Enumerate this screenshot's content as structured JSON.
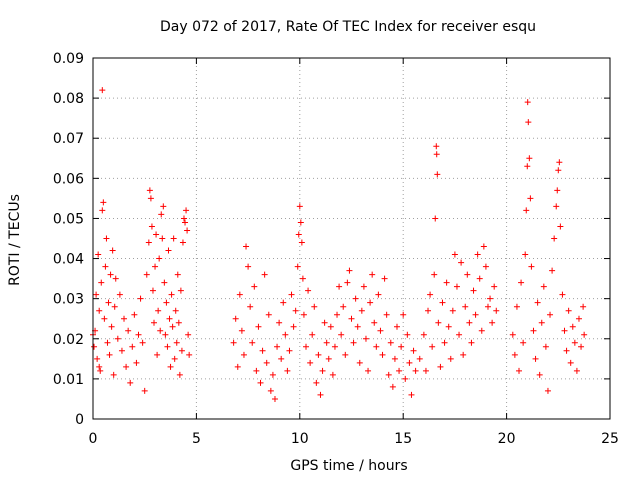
{
  "chart_data": {
    "type": "scatter",
    "title": "Day 072 of 2017, Rate Of TEC Index for receiver esqu",
    "xlabel": "GPS time / hours",
    "ylabel": "ROTI / TECUs",
    "xlim": [
      0,
      25
    ],
    "ylim": [
      0,
      0.09
    ],
    "x_ticks": [
      0,
      5,
      10,
      15,
      20,
      25
    ],
    "x_tick_labels": [
      "0",
      "5",
      "10",
      "15",
      "20",
      "25"
    ],
    "y_ticks": [
      0,
      0.01,
      0.02,
      0.03,
      0.04,
      0.05,
      0.06,
      0.07,
      0.08,
      0.09
    ],
    "y_tick_labels": [
      "0",
      "0.01",
      "0.02",
      "0.03",
      "0.04",
      "0.05",
      "0.06",
      "0.07",
      "0.08",
      "0.09"
    ],
    "grid": true,
    "marker": "+",
    "color": "#ff0000",
    "series": [
      {
        "name": "ROTI",
        "points": [
          [
            0.05,
            0.018
          ],
          [
            0.1,
            0.022
          ],
          [
            0.15,
            0.031
          ],
          [
            0.2,
            0.015
          ],
          [
            0.25,
            0.041
          ],
          [
            0.3,
            0.027
          ],
          [
            0.35,
            0.012
          ],
          [
            0.4,
            0.034
          ],
          [
            0.45,
            0.052
          ],
          [
            0.5,
            0.054
          ],
          [
            0.55,
            0.025
          ],
          [
            0.6,
            0.038
          ],
          [
            0.65,
            0.045
          ],
          [
            0.7,
            0.019
          ],
          [
            0.75,
            0.029
          ],
          [
            0.8,
            0.016
          ],
          [
            0.85,
            0.036
          ],
          [
            0.9,
            0.023
          ],
          [
            0.95,
            0.042
          ],
          [
            1.0,
            0.011
          ],
          [
            1.05,
            0.028
          ],
          [
            1.1,
            0.035
          ],
          [
            1.2,
            0.02
          ],
          [
            1.3,
            0.031
          ],
          [
            1.4,
            0.017
          ],
          [
            1.5,
            0.025
          ],
          [
            1.6,
            0.013
          ],
          [
            1.7,
            0.022
          ],
          [
            1.8,
            0.009
          ],
          [
            1.9,
            0.018
          ],
          [
            2.0,
            0.026
          ],
          [
            2.1,
            0.014
          ],
          [
            2.2,
            0.021
          ],
          [
            2.3,
            0.03
          ],
          [
            2.4,
            0.019
          ],
          [
            2.5,
            0.007
          ],
          [
            2.6,
            0.036
          ],
          [
            2.7,
            0.044
          ],
          [
            2.75,
            0.057
          ],
          [
            2.8,
            0.055
          ],
          [
            2.85,
            0.048
          ],
          [
            2.9,
            0.032
          ],
          [
            2.95,
            0.024
          ],
          [
            3.0,
            0.038
          ],
          [
            3.05,
            0.046
          ],
          [
            3.1,
            0.016
          ],
          [
            3.15,
            0.027
          ],
          [
            3.2,
            0.04
          ],
          [
            3.25,
            0.022
          ],
          [
            3.3,
            0.051
          ],
          [
            3.35,
            0.045
          ],
          [
            3.4,
            0.053
          ],
          [
            3.45,
            0.034
          ],
          [
            3.5,
            0.021
          ],
          [
            3.55,
            0.029
          ],
          [
            3.6,
            0.018
          ],
          [
            3.65,
            0.042
          ],
          [
            3.7,
            0.025
          ],
          [
            3.75,
            0.013
          ],
          [
            3.8,
            0.031
          ],
          [
            3.85,
            0.023
          ],
          [
            3.9,
            0.045
          ],
          [
            3.95,
            0.015
          ],
          [
            4.0,
            0.027
          ],
          [
            4.05,
            0.019
          ],
          [
            4.1,
            0.036
          ],
          [
            4.15,
            0.024
          ],
          [
            4.2,
            0.011
          ],
          [
            4.25,
            0.032
          ],
          [
            4.3,
            0.017
          ],
          [
            4.35,
            0.044
          ],
          [
            4.4,
            0.05
          ],
          [
            4.45,
            0.049
          ],
          [
            4.5,
            0.052
          ],
          [
            4.55,
            0.047
          ],
          [
            4.6,
            0.021
          ],
          [
            4.65,
            0.016
          ],
          [
            0.45,
            0.082
          ],
          [
            0.0,
            0.021
          ],
          [
            0.3,
            0.013
          ],
          [
            6.8,
            0.019
          ],
          [
            6.9,
            0.025
          ],
          [
            7.0,
            0.013
          ],
          [
            7.1,
            0.031
          ],
          [
            7.2,
            0.022
          ],
          [
            7.3,
            0.016
          ],
          [
            7.4,
            0.043
          ],
          [
            7.5,
            0.038
          ],
          [
            7.6,
            0.028
          ],
          [
            7.7,
            0.019
          ],
          [
            7.8,
            0.033
          ],
          [
            7.9,
            0.012
          ],
          [
            8.0,
            0.023
          ],
          [
            8.1,
            0.009
          ],
          [
            8.2,
            0.017
          ],
          [
            8.3,
            0.036
          ],
          [
            8.4,
            0.014
          ],
          [
            8.5,
            0.026
          ],
          [
            8.6,
            0.007
          ],
          [
            8.7,
            0.011
          ],
          [
            8.8,
            0.005
          ],
          [
            8.9,
            0.018
          ],
          [
            9.0,
            0.024
          ],
          [
            9.1,
            0.015
          ],
          [
            9.2,
            0.029
          ],
          [
            9.3,
            0.021
          ],
          [
            9.4,
            0.012
          ],
          [
            9.5,
            0.017
          ],
          [
            9.6,
            0.031
          ],
          [
            9.7,
            0.023
          ],
          [
            9.8,
            0.027
          ],
          [
            9.9,
            0.038
          ],
          [
            9.95,
            0.046
          ],
          [
            10.0,
            0.053
          ],
          [
            10.05,
            0.049
          ],
          [
            10.1,
            0.044
          ],
          [
            10.15,
            0.035
          ],
          [
            10.2,
            0.026
          ],
          [
            10.3,
            0.018
          ],
          [
            10.4,
            0.032
          ],
          [
            10.5,
            0.014
          ],
          [
            10.6,
            0.021
          ],
          [
            10.7,
            0.028
          ],
          [
            10.8,
            0.009
          ],
          [
            10.9,
            0.016
          ],
          [
            11.0,
            0.006
          ],
          [
            11.1,
            0.012
          ],
          [
            11.2,
            0.024
          ],
          [
            11.3,
            0.019
          ],
          [
            11.4,
            0.015
          ],
          [
            11.5,
            0.023
          ],
          [
            11.6,
            0.011
          ],
          [
            11.7,
            0.018
          ],
          [
            11.8,
            0.026
          ],
          [
            11.9,
            0.033
          ],
          [
            12.0,
            0.021
          ],
          [
            12.1,
            0.028
          ],
          [
            12.2,
            0.016
          ],
          [
            12.3,
            0.034
          ],
          [
            12.4,
            0.037
          ],
          [
            12.5,
            0.025
          ],
          [
            12.6,
            0.019
          ],
          [
            12.7,
            0.03
          ],
          [
            12.8,
            0.023
          ],
          [
            12.9,
            0.014
          ],
          [
            13.0,
            0.027
          ],
          [
            13.1,
            0.033
          ],
          [
            13.2,
            0.02
          ],
          [
            13.3,
            0.012
          ],
          [
            13.4,
            0.029
          ],
          [
            13.5,
            0.036
          ],
          [
            13.6,
            0.024
          ],
          [
            13.7,
            0.018
          ],
          [
            13.8,
            0.031
          ],
          [
            13.9,
            0.022
          ],
          [
            14.0,
            0.016
          ],
          [
            14.1,
            0.035
          ],
          [
            14.2,
            0.026
          ],
          [
            14.3,
            0.011
          ],
          [
            14.4,
            0.019
          ],
          [
            14.5,
            0.008
          ],
          [
            14.6,
            0.015
          ],
          [
            14.7,
            0.023
          ],
          [
            14.8,
            0.012
          ],
          [
            14.9,
            0.018
          ],
          [
            15.0,
            0.026
          ],
          [
            15.1,
            0.01
          ],
          [
            15.2,
            0.021
          ],
          [
            15.3,
            0.014
          ],
          [
            15.4,
            0.006
          ],
          [
            15.5,
            0.017
          ],
          [
            15.6,
            0.012
          ],
          [
            15.8,
            0.015
          ],
          [
            16.0,
            0.021
          ],
          [
            16.1,
            0.012
          ],
          [
            16.2,
            0.027
          ],
          [
            16.3,
            0.031
          ],
          [
            16.4,
            0.018
          ],
          [
            16.5,
            0.036
          ],
          [
            16.55,
            0.05
          ],
          [
            16.6,
            0.068
          ],
          [
            16.62,
            0.066
          ],
          [
            16.65,
            0.061
          ],
          [
            16.7,
            0.024
          ],
          [
            16.8,
            0.013
          ],
          [
            16.9,
            0.029
          ],
          [
            17.0,
            0.019
          ],
          [
            17.1,
            0.034
          ],
          [
            17.2,
            0.023
          ],
          [
            17.3,
            0.015
          ],
          [
            17.4,
            0.027
          ],
          [
            17.5,
            0.041
          ],
          [
            17.6,
            0.033
          ],
          [
            17.7,
            0.021
          ],
          [
            17.8,
            0.039
          ],
          [
            17.9,
            0.016
          ],
          [
            18.0,
            0.028
          ],
          [
            18.1,
            0.036
          ],
          [
            18.2,
            0.024
          ],
          [
            18.3,
            0.019
          ],
          [
            18.4,
            0.032
          ],
          [
            18.5,
            0.026
          ],
          [
            18.6,
            0.041
          ],
          [
            18.7,
            0.035
          ],
          [
            18.8,
            0.022
          ],
          [
            18.9,
            0.043
          ],
          [
            19.0,
            0.038
          ],
          [
            19.1,
            0.028
          ],
          [
            19.2,
            0.03
          ],
          [
            19.3,
            0.024
          ],
          [
            19.4,
            0.033
          ],
          [
            19.5,
            0.027
          ],
          [
            20.3,
            0.021
          ],
          [
            20.4,
            0.016
          ],
          [
            20.5,
            0.028
          ],
          [
            20.6,
            0.012
          ],
          [
            20.7,
            0.034
          ],
          [
            20.8,
            0.019
          ],
          [
            20.9,
            0.041
          ],
          [
            20.95,
            0.052
          ],
          [
            21.0,
            0.063
          ],
          [
            21.02,
            0.079
          ],
          [
            21.05,
            0.074
          ],
          [
            21.1,
            0.065
          ],
          [
            21.15,
            0.055
          ],
          [
            21.2,
            0.038
          ],
          [
            21.3,
            0.022
          ],
          [
            21.4,
            0.015
          ],
          [
            21.5,
            0.029
          ],
          [
            21.6,
            0.011
          ],
          [
            21.7,
            0.024
          ],
          [
            21.8,
            0.033
          ],
          [
            21.9,
            0.018
          ],
          [
            22.0,
            0.007
          ],
          [
            22.1,
            0.026
          ],
          [
            22.2,
            0.037
          ],
          [
            22.3,
            0.045
          ],
          [
            22.4,
            0.053
          ],
          [
            22.45,
            0.057
          ],
          [
            22.5,
            0.062
          ],
          [
            22.55,
            0.064
          ],
          [
            22.6,
            0.048
          ],
          [
            22.7,
            0.031
          ],
          [
            22.8,
            0.022
          ],
          [
            22.9,
            0.017
          ],
          [
            23.0,
            0.027
          ],
          [
            23.1,
            0.014
          ],
          [
            23.2,
            0.023
          ],
          [
            23.3,
            0.019
          ],
          [
            23.4,
            0.012
          ],
          [
            23.5,
            0.025
          ],
          [
            23.6,
            0.018
          ],
          [
            23.7,
            0.028
          ],
          [
            23.75,
            0.021
          ]
        ]
      }
    ]
  }
}
